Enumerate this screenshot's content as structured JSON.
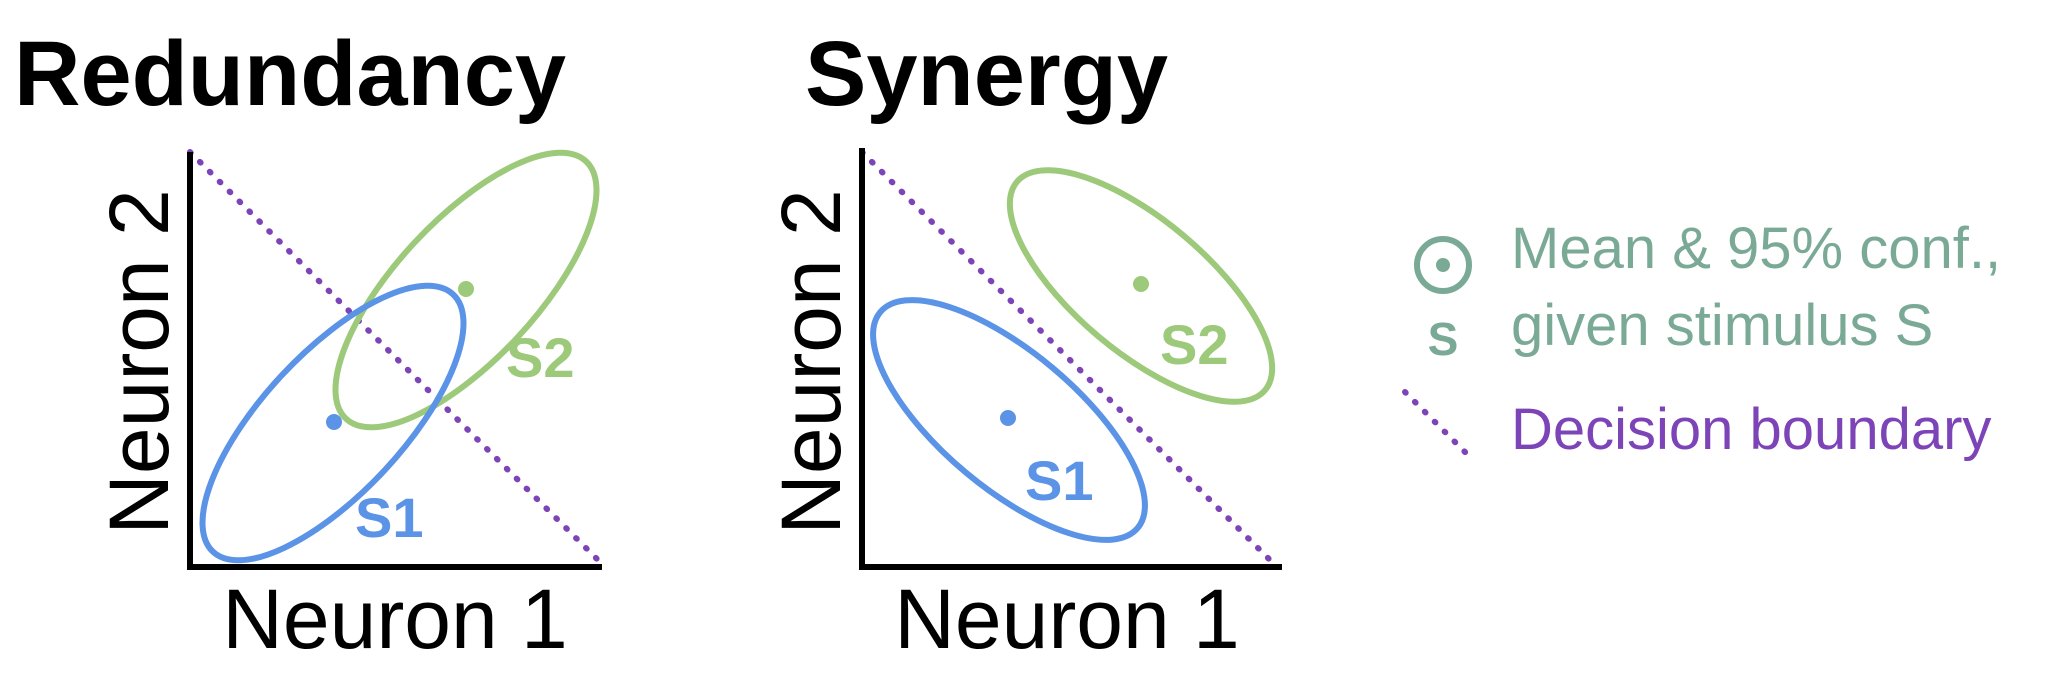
{
  "colors": {
    "s1": "#5b93e6",
    "s2": "#9dc97a",
    "boundary": "#7d44b8",
    "legend_mean": "#7aaa96",
    "axis": "#000000"
  },
  "panels": [
    {
      "title": "Redundancy",
      "xlabel": "Neuron 1",
      "ylabel": "Neuron 2",
      "s1_label": "S1",
      "s2_label": "S2"
    },
    {
      "title": "Synergy",
      "xlabel": "Neuron 1",
      "ylabel": "Neuron 2",
      "s1_label": "S1",
      "s2_label": "S2"
    }
  ],
  "legend": {
    "mean_symbol_label": "S",
    "mean_line1": "Mean & 95% conf.,",
    "mean_line2": "given stimulus S",
    "boundary_label": "Decision boundary",
    "mean_icon": "circle-dot-icon",
    "boundary_icon": "dotted-diagonal-icon"
  }
}
